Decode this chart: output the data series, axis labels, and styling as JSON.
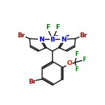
{
  "bg": "#ffffff",
  "lc": "#1a1a1a",
  "Nc": "#0000cc",
  "Bc": "#0000cc",
  "Brc": "#880000",
  "Fc": "#007700",
  "Oc": "#cc2200",
  "lw": 1.1,
  "fs": 6.8,
  "fs_sm": 5.6
}
